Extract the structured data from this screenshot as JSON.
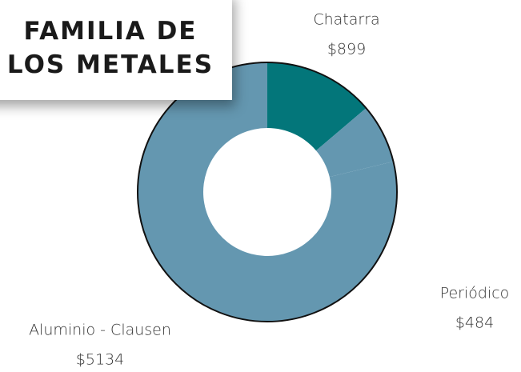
{
  "chart_data": {
    "type": "donut",
    "title": "FAMILIA DE LOS METALES",
    "categories": [
      "Chatarra",
      "Periódico",
      "Aluminio - Clausen"
    ],
    "values": [
      899,
      484,
      5134
    ],
    "value_labels": [
      "$899",
      "$484",
      "$5134"
    ],
    "colors": [
      "#03767a",
      "#6497b0",
      "#6497b0"
    ]
  }
}
